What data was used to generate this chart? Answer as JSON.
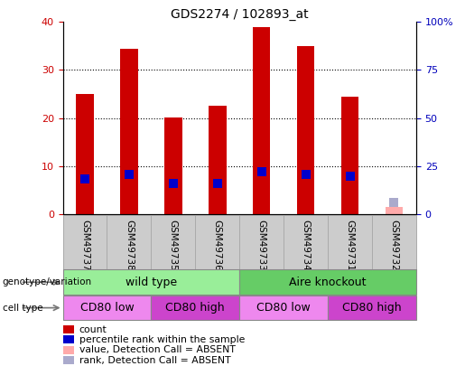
{
  "title": "GDS2274 / 102893_at",
  "samples": [
    "GSM49737",
    "GSM49738",
    "GSM49735",
    "GSM49736",
    "GSM49733",
    "GSM49734",
    "GSM49731",
    "GSM49732"
  ],
  "count_values": [
    25,
    34.5,
    20.2,
    22.5,
    39,
    35,
    24.5,
    1.5
  ],
  "rank_values": [
    18.5,
    20.5,
    16,
    16,
    22,
    20.5,
    19.5,
    6
  ],
  "absent_flags": [
    false,
    false,
    false,
    false,
    false,
    false,
    false,
    true
  ],
  "ylim_left": [
    0,
    40
  ],
  "ylim_right": [
    0,
    100
  ],
  "yticks_left": [
    0,
    10,
    20,
    30,
    40
  ],
  "ytick_labels_left": [
    "0",
    "10",
    "20",
    "30",
    "40"
  ],
  "ytick_labels_right": [
    "0",
    "25",
    "50",
    "75",
    "100%"
  ],
  "bar_color_present": "#cc0000",
  "bar_color_absent": "#ffaaaa",
  "rank_color_present": "#0000cc",
  "rank_color_absent": "#aaaacc",
  "bar_width": 0.4,
  "rank_marker_size": 50,
  "genotype_groups": [
    {
      "label": "wild type",
      "start": 0,
      "end": 4,
      "color": "#99ee99"
    },
    {
      "label": "Aire knockout",
      "start": 4,
      "end": 8,
      "color": "#66cc66"
    }
  ],
  "cell_type_groups": [
    {
      "label": "CD80 low",
      "start": 0,
      "end": 2,
      "color": "#ee88ee"
    },
    {
      "label": "CD80 high",
      "start": 2,
      "end": 4,
      "color": "#cc44cc"
    },
    {
      "label": "CD80 low",
      "start": 4,
      "end": 6,
      "color": "#ee88ee"
    },
    {
      "label": "CD80 high",
      "start": 6,
      "end": 8,
      "color": "#cc44cc"
    }
  ],
  "legend_items": [
    {
      "label": "count",
      "color": "#cc0000"
    },
    {
      "label": "percentile rank within the sample",
      "color": "#0000cc"
    },
    {
      "label": "value, Detection Call = ABSENT",
      "color": "#ffaaaa"
    },
    {
      "label": "rank, Detection Call = ABSENT",
      "color": "#aaaacc"
    }
  ],
  "bg_color": "#ffffff",
  "plot_bg_color": "#ffffff",
  "xlabel_color": "#cc0000",
  "ylabel_right_color": "#0000bb",
  "label_area_color": "#cccccc",
  "grid_dotted_color": "#000000"
}
